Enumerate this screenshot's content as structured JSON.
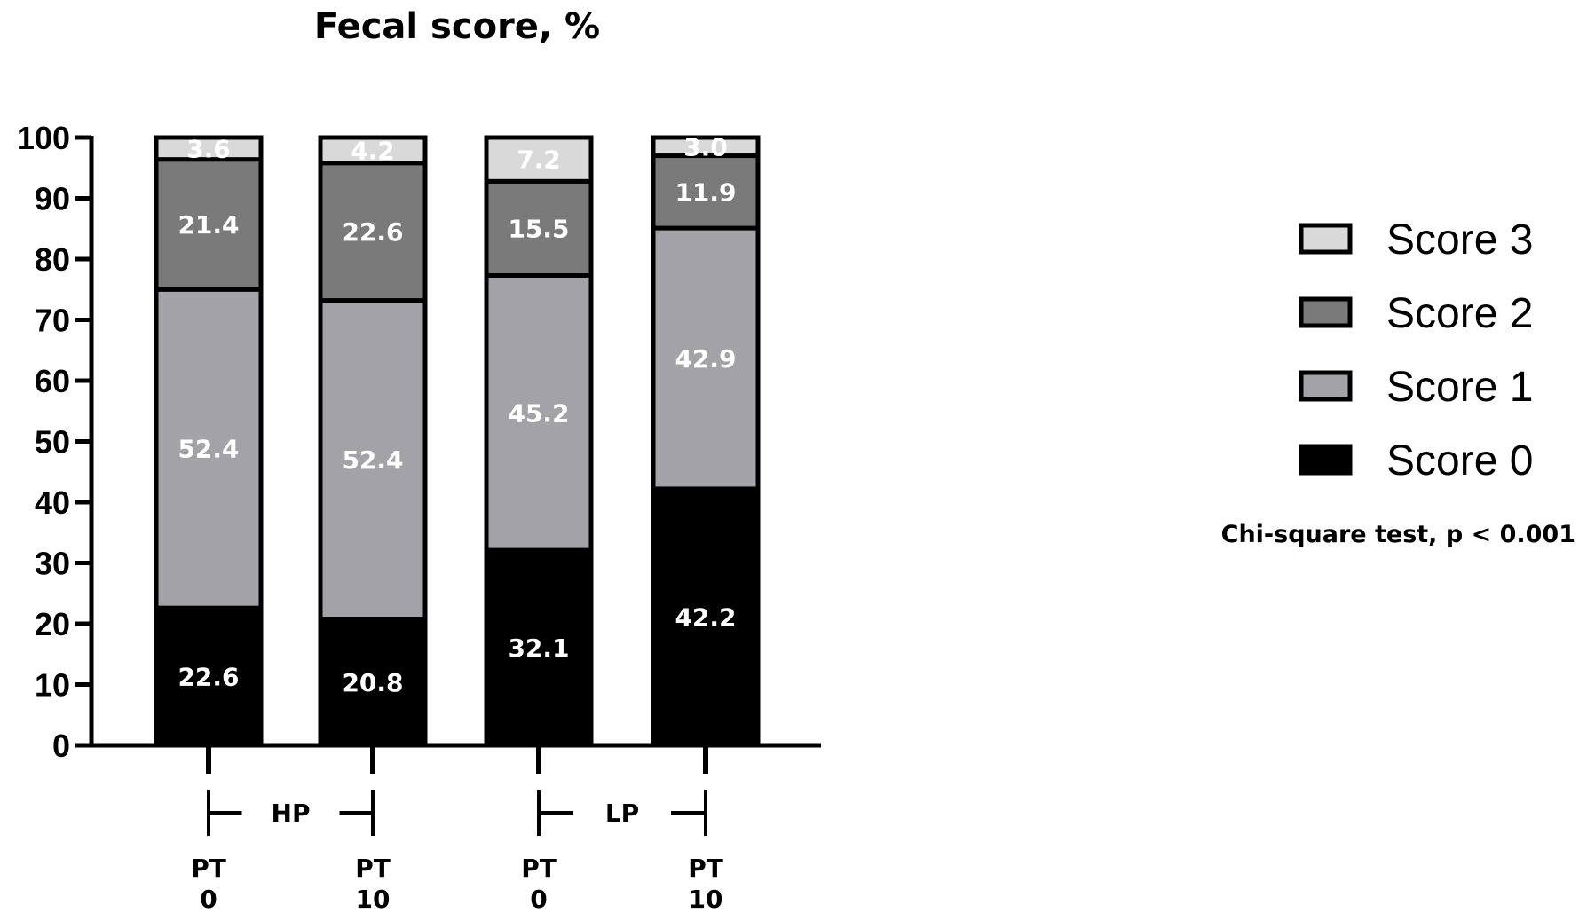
{
  "chart_data": {
    "type": "bar",
    "stacked": true,
    "title": "Fecal score, %",
    "ylim": [
      0,
      100
    ],
    "yticks": [
      "0",
      "10",
      "20",
      "30",
      "40",
      "50",
      "60",
      "70",
      "80",
      "90",
      "100"
    ],
    "categories": [
      {
        "line1": "PT",
        "line2": "0"
      },
      {
        "line1": "PT",
        "line2": "10"
      },
      {
        "line1": "PT",
        "line2": "0"
      },
      {
        "line1": "PT",
        "line2": "10"
      }
    ],
    "groups": [
      {
        "label": "HP",
        "categories": [
          0,
          1
        ]
      },
      {
        "label": "LP",
        "categories": [
          2,
          3
        ]
      }
    ],
    "series": [
      {
        "name": "Score 0",
        "color": "#000000",
        "values": [
          22.6,
          20.8,
          32.1,
          42.2
        ],
        "labels": [
          "22.6",
          "20.8",
          "32.1",
          "42.2"
        ]
      },
      {
        "name": "Score 1",
        "color": "#a3a3a7",
        "values": [
          52.4,
          52.4,
          45.2,
          42.9
        ],
        "labels": [
          "52.4",
          "52.4",
          "45.2",
          "42.9"
        ]
      },
      {
        "name": "Score 2",
        "color": "#7a7a7a",
        "values": [
          21.4,
          22.6,
          15.5,
          11.9
        ],
        "labels": [
          "21.4",
          "22.6",
          "15.5",
          "11.9"
        ]
      },
      {
        "name": "Score 3",
        "color": "#d9d9d9",
        "values": [
          3.6,
          4.2,
          7.2,
          3.0
        ],
        "labels": [
          "3.6",
          "4.2",
          "7.2",
          "3.0"
        ]
      }
    ],
    "legend": {
      "position": "right",
      "order": [
        "Score 3",
        "Score 2",
        "Score 1",
        "Score 0"
      ]
    },
    "grid": false,
    "annotation": "Chi-square test, p < 0.001"
  }
}
